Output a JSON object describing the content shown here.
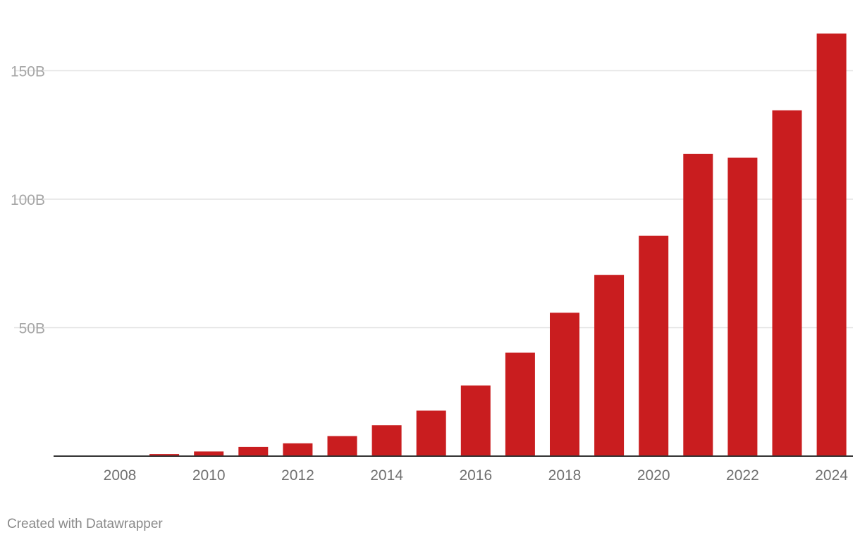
{
  "chart_data": {
    "type": "bar",
    "categories": [
      "2008",
      "2009",
      "2010",
      "2011",
      "2012",
      "2013",
      "2014",
      "2015",
      "2016",
      "2017",
      "2018",
      "2019",
      "2020",
      "2021",
      "2022",
      "2023",
      "2024"
    ],
    "values": [
      0.1,
      0.8,
      1.8,
      3.6,
      5.0,
      7.8,
      12.0,
      17.7,
      27.5,
      40.3,
      55.8,
      70.5,
      85.8,
      117.6,
      116.2,
      134.6,
      164.5
    ],
    "x_tick_labels": [
      "2008",
      "2010",
      "2012",
      "2014",
      "2016",
      "2018",
      "2020",
      "2022",
      "2024"
    ],
    "y_ticks": [
      {
        "value": 50,
        "label": "50B"
      },
      {
        "value": 100,
        "label": "100B"
      },
      {
        "value": 150,
        "label": "150B"
      }
    ],
    "ylim": [
      0,
      168
    ],
    "grid": true,
    "bar_color": "#c91d1f",
    "title": "",
    "xlabel": "",
    "ylabel": ""
  },
  "footer": {
    "credit": "Created with Datawrapper"
  }
}
